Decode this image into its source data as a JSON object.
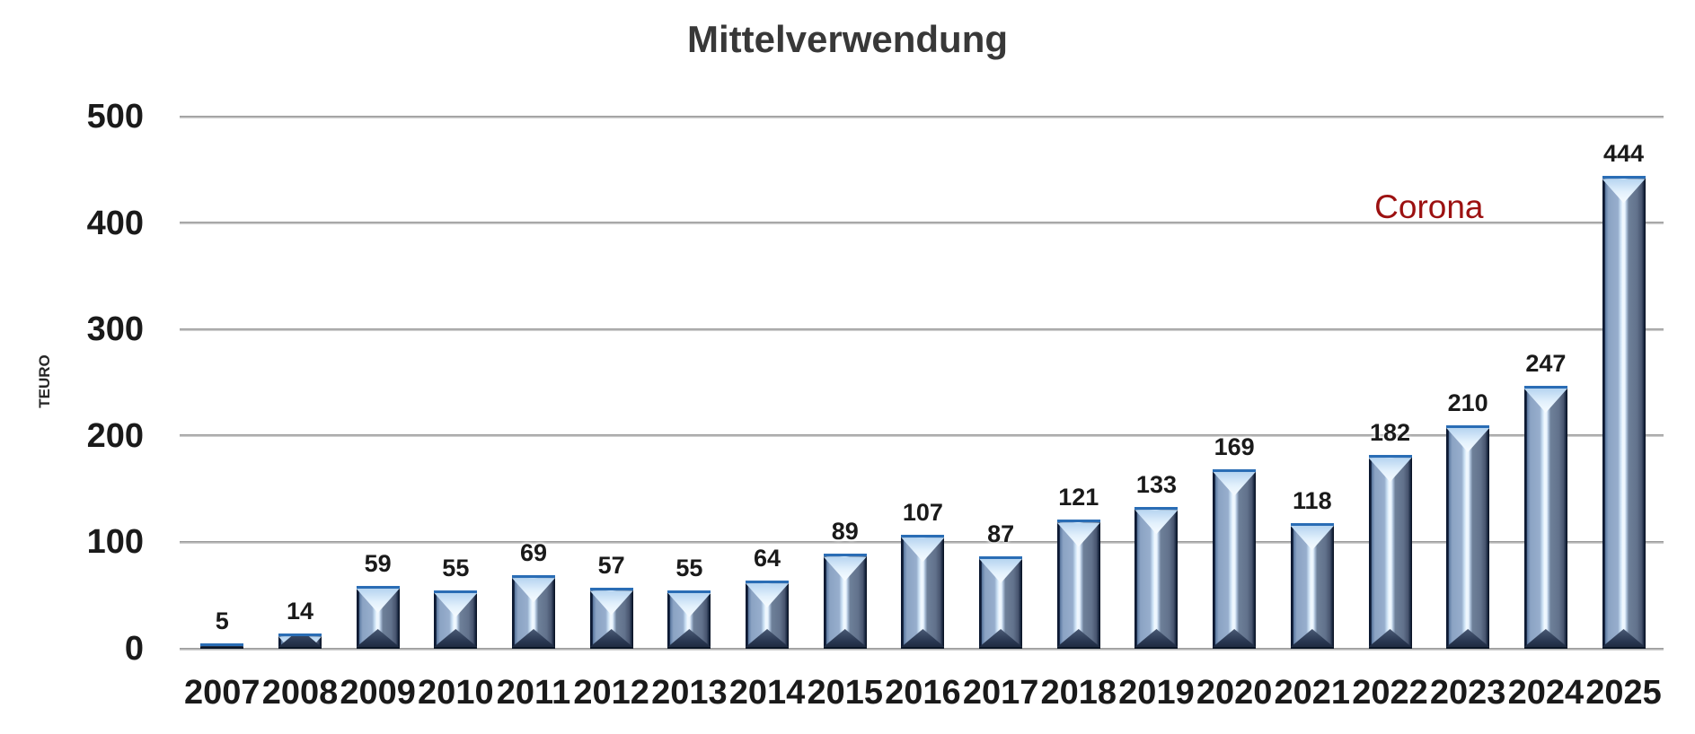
{
  "chart_data": {
    "type": "bar",
    "title": "Mittelverwendung",
    "xlabel": "",
    "ylabel": "TEURO",
    "categories": [
      "2007",
      "2008",
      "2009",
      "2010",
      "2011",
      "2012",
      "2013",
      "2014",
      "2015",
      "2016",
      "2017",
      "2018",
      "2019",
      "2020",
      "2021",
      "2022",
      "2023",
      "2024",
      "2025"
    ],
    "values": [
      5,
      14,
      59,
      55,
      69,
      57,
      55,
      64,
      89,
      107,
      87,
      121,
      133,
      169,
      118,
      182,
      210,
      247,
      444
    ],
    "ylim": [
      0,
      500
    ],
    "yticks": [
      0,
      100,
      200,
      300,
      400,
      500
    ],
    "grid": "horizontal",
    "legend": "none",
    "annotations": [
      {
        "text": "Corona",
        "color": "#9c1111",
        "between_categories": [
          "2022",
          "2023"
        ],
        "y_value": 400
      }
    ],
    "colors": {
      "bar_body_light": "#8ba3c3",
      "bar_highlight_stripe": "#f2f9ff",
      "bar_body_shadow": "#64748e",
      "bar_border": "#0c1830",
      "bar_top_edge": "#2a6db5",
      "gridline": "#a6a6a6",
      "text": "#1a1a1a",
      "title_text": "#383838",
      "annotation_text": "#9c1111"
    }
  }
}
